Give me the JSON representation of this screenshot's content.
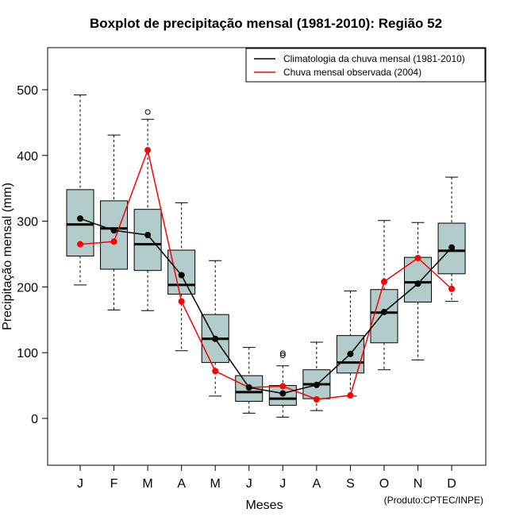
{
  "chart_data": {
    "type": "boxplot",
    "title": "Boxplot de precipitação mensal (1981-2010): Região 52",
    "xlabel": "Meses",
    "ylabel": "Precipitação mensal (mm)",
    "credit": "(Produto:CPTEC/INPE)",
    "ylim": [
      -70,
      570
    ],
    "yticks": [
      0,
      100,
      200,
      300,
      400,
      500
    ],
    "categories": [
      "J",
      "F",
      "M",
      "A",
      "M",
      "J",
      "J",
      "A",
      "S",
      "O",
      "N",
      "D"
    ],
    "boxes": [
      {
        "lower_whisker": 203,
        "q1": 247,
        "median": 295,
        "q3": 348,
        "upper_whisker": 492,
        "outliers": []
      },
      {
        "lower_whisker": 165,
        "q1": 227,
        "median": 289,
        "q3": 331,
        "upper_whisker": 431,
        "outliers": []
      },
      {
        "lower_whisker": 164,
        "q1": 225,
        "median": 265,
        "q3": 318,
        "upper_whisker": 455,
        "outliers": [
          466
        ]
      },
      {
        "lower_whisker": 103,
        "q1": 189,
        "median": 203,
        "q3": 256,
        "upper_whisker": 328,
        "outliers": []
      },
      {
        "lower_whisker": 34,
        "q1": 85,
        "median": 121,
        "q3": 158,
        "upper_whisker": 240,
        "outliers": []
      },
      {
        "lower_whisker": 8,
        "q1": 26,
        "median": 40,
        "q3": 65,
        "upper_whisker": 108,
        "outliers": []
      },
      {
        "lower_whisker": 2,
        "q1": 20,
        "median": 30,
        "q3": 50,
        "upper_whisker": 80,
        "outliers": [
          96,
          99
        ]
      },
      {
        "lower_whisker": 12,
        "q1": 30,
        "median": 52,
        "q3": 74,
        "upper_whisker": 116,
        "outliers": []
      },
      {
        "lower_whisker": 34,
        "q1": 69,
        "median": 85,
        "q3": 126,
        "upper_whisker": 194,
        "outliers": []
      },
      {
        "lower_whisker": 74,
        "q1": 115,
        "median": 161,
        "q3": 196,
        "upper_whisker": 301,
        "outliers": []
      },
      {
        "lower_whisker": 89,
        "q1": 177,
        "median": 207,
        "q3": 245,
        "upper_whisker": 298,
        "outliers": []
      },
      {
        "lower_whisker": 178,
        "q1": 220,
        "median": 255,
        "q3": 297,
        "upper_whisker": 367,
        "outliers": []
      }
    ],
    "series": [
      {
        "name": "Climatologia da chuva mensal (1981-2010)",
        "color": "#000000",
        "values": [
          304,
          286,
          279,
          218,
          121,
          47,
          38,
          51,
          98,
          162,
          205,
          260
        ]
      },
      {
        "name": "Chuva mensal observada (2004)",
        "color": "#ff0000",
        "values": [
          265,
          269,
          408,
          178,
          72,
          47,
          49,
          29,
          35,
          208,
          244,
          197
        ]
      }
    ],
    "box_color": "#b2cbcb",
    "legend_position": "top-right"
  }
}
